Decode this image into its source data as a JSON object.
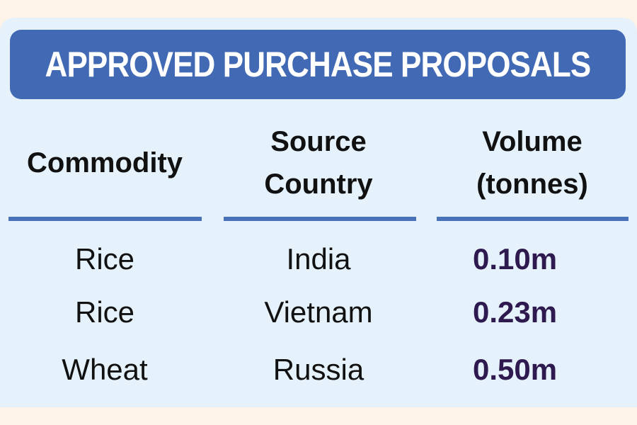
{
  "chart_data": {
    "type": "table",
    "title": "APPROVED PURCHASE PROPOSALS",
    "columns": [
      "Commodity",
      "Source Country",
      "Volume (tonnes)"
    ],
    "column_lines": [
      [
        "Commodity"
      ],
      [
        "Source",
        "Country"
      ],
      [
        "Volume",
        "(tonnes)"
      ]
    ],
    "rows": [
      [
        "Rice",
        "India",
        "0.10m"
      ],
      [
        "Rice",
        "Vietnam",
        "0.23m"
      ],
      [
        "Wheat",
        "Russia",
        "0.50m"
      ]
    ]
  },
  "colors": {
    "banner": "#4169b4",
    "panel": "#e6f2fb",
    "background": "#fdf3e9",
    "value_text": "#2e1a4f"
  }
}
